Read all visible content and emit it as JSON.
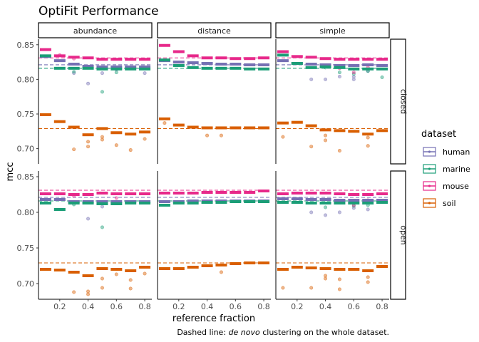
{
  "chart_data": {
    "type": "scatter",
    "title": "OptiFit Performance",
    "xlabel": "reference fraction",
    "ylabel": "mcc",
    "caption_prefix": "Dashed line: ",
    "caption_italic": "de novo",
    "caption_suffix": " clustering on the whole dataset.",
    "col_facets": [
      "abundance",
      "distance",
      "simple"
    ],
    "row_facets": [
      "closed",
      "open"
    ],
    "x": [
      0.1,
      0.2,
      0.3,
      0.4,
      0.5,
      0.6,
      0.7,
      0.8
    ],
    "xlim": [
      0.05,
      0.85
    ],
    "ylim": [
      0.678,
      0.858
    ],
    "x_ticks": [
      "0.2",
      "0.4",
      "0.6",
      "0.8"
    ],
    "y_ticks": [
      "0.70",
      "0.75",
      "0.80",
      "0.85"
    ],
    "grid": false,
    "legend": {
      "title": "dataset",
      "position": "right",
      "entries": [
        "human",
        "marine",
        "mouse",
        "soil"
      ]
    },
    "colors": {
      "human": "#7570b3",
      "marine": "#1b9e77",
      "mouse": "#e7298a",
      "soil": "#d95f02"
    },
    "de_novo": {
      "human": 0.821,
      "marine": 0.816,
      "mouse": 0.831,
      "soil": 0.729
    },
    "panels": {
      "closed": {
        "abundance": {
          "human": [
            0.833,
            0.827,
            0.822,
            0.819,
            0.818,
            0.818,
            0.818,
            0.818
          ],
          "marine": [
            0.834,
            0.816,
            0.816,
            0.816,
            0.815,
            0.815,
            0.815,
            0.815
          ],
          "mouse": [
            0.843,
            0.834,
            0.832,
            0.831,
            0.829,
            0.829,
            0.829,
            0.829
          ],
          "soil": [
            0.749,
            0.739,
            0.731,
            0.72,
            0.729,
            0.723,
            0.721,
            0.724
          ]
        },
        "distance": {
          "human": [
            0.827,
            0.825,
            0.824,
            0.823,
            0.822,
            0.822,
            0.821,
            0.821
          ],
          "marine": [
            0.828,
            0.82,
            0.817,
            0.816,
            0.816,
            0.816,
            0.815,
            0.815
          ],
          "mouse": [
            0.849,
            0.84,
            0.834,
            0.831,
            0.831,
            0.83,
            0.83,
            0.831
          ],
          "soil": [
            0.743,
            0.734,
            0.731,
            0.73,
            0.73,
            0.73,
            0.73,
            0.73
          ]
        },
        "simple": {
          "human": [
            0.827,
            0.823,
            0.822,
            0.821,
            0.82,
            0.82,
            0.821,
            0.82
          ],
          "marine": [
            0.835,
            0.823,
            0.817,
            0.818,
            0.817,
            0.815,
            0.815,
            0.815
          ],
          "mouse": [
            0.84,
            0.833,
            0.832,
            0.83,
            0.829,
            0.829,
            0.829,
            0.829
          ],
          "soil": [
            0.737,
            0.738,
            0.733,
            0.727,
            0.726,
            0.725,
            0.721,
            0.726
          ]
        }
      },
      "open": {
        "abundance": {
          "human": [
            0.818,
            0.818,
            0.815,
            0.815,
            0.815,
            0.815,
            0.815,
            0.815
          ],
          "marine": [
            0.813,
            0.804,
            0.813,
            0.813,
            0.812,
            0.812,
            0.813,
            0.813
          ],
          "mouse": [
            0.826,
            0.826,
            0.825,
            0.825,
            0.827,
            0.826,
            0.826,
            0.826
          ],
          "soil": [
            0.72,
            0.719,
            0.716,
            0.711,
            0.721,
            0.72,
            0.718,
            0.723
          ]
        },
        "distance": {
          "human": [
            0.815,
            0.815,
            0.816,
            0.816,
            0.816,
            0.816,
            0.816,
            0.816
          ],
          "marine": [
            0.81,
            0.813,
            0.813,
            0.814,
            0.814,
            0.815,
            0.815,
            0.815
          ],
          "mouse": [
            0.827,
            0.827,
            0.827,
            0.828,
            0.828,
            0.828,
            0.828,
            0.83
          ],
          "soil": [
            0.721,
            0.721,
            0.723,
            0.725,
            0.726,
            0.728,
            0.729,
            0.729
          ]
        },
        "simple": {
          "human": [
            0.819,
            0.819,
            0.818,
            0.818,
            0.817,
            0.817,
            0.817,
            0.817
          ],
          "marine": [
            0.814,
            0.814,
            0.813,
            0.813,
            0.813,
            0.813,
            0.813,
            0.814
          ],
          "mouse": [
            0.826,
            0.827,
            0.827,
            0.827,
            0.826,
            0.825,
            0.825,
            0.826
          ],
          "soil": [
            0.72,
            0.723,
            0.722,
            0.721,
            0.72,
            0.72,
            0.718,
            0.724
          ]
        }
      }
    },
    "outliers": {
      "closed": {
        "abundance": {
          "human": [
            [
              0.3,
              0.809
            ],
            [
              0.4,
              0.794
            ],
            [
              0.5,
              0.809
            ],
            [
              0.6,
              0.814
            ],
            [
              0.8,
              0.809
            ]
          ],
          "marine": [
            [
              0.3,
              0.811
            ],
            [
              0.5,
              0.782
            ],
            [
              0.6,
              0.81
            ]
          ],
          "mouse": [
            [
              0.2,
              0.835
            ],
            [
              0.3,
              0.83
            ]
          ],
          "soil": [
            [
              0.3,
              0.699
            ],
            [
              0.4,
              0.703
            ],
            [
              0.4,
              0.71
            ],
            [
              0.5,
              0.713
            ],
            [
              0.5,
              0.717
            ],
            [
              0.6,
              0.705
            ],
            [
              0.7,
              0.698
            ],
            [
              0.8,
              0.714
            ]
          ]
        },
        "distance": {
          "human": [],
          "marine": [],
          "mouse": [],
          "soil": [
            [
              0.1,
              0.737
            ],
            [
              0.4,
              0.719
            ],
            [
              0.5,
              0.719
            ]
          ]
        },
        "simple": {
          "human": [
            [
              0.3,
              0.8
            ],
            [
              0.4,
              0.8
            ],
            [
              0.5,
              0.804
            ],
            [
              0.6,
              0.8
            ],
            [
              0.6,
              0.804
            ],
            [
              0.7,
              0.812
            ]
          ],
          "marine": [
            [
              0.4,
              0.817
            ],
            [
              0.5,
              0.81
            ],
            [
              0.6,
              0.808
            ],
            [
              0.7,
              0.812
            ],
            [
              0.8,
              0.803
            ]
          ],
          "mouse": [
            [
              0.5,
              0.816
            ],
            [
              0.6,
              0.81
            ],
            [
              0.7,
              0.817
            ]
          ],
          "soil": [
            [
              0.1,
              0.717
            ],
            [
              0.3,
              0.703
            ],
            [
              0.4,
              0.712
            ],
            [
              0.4,
              0.719
            ],
            [
              0.5,
              0.697
            ],
            [
              0.7,
              0.704
            ],
            [
              0.7,
              0.716
            ]
          ]
        }
      },
      "open": {
        "abundance": {
          "human": [
            [
              0.4,
              0.791
            ],
            [
              0.5,
              0.808
            ]
          ],
          "marine": [
            [
              0.5,
              0.779
            ],
            [
              0.3,
              0.811
            ]
          ],
          "mouse": [
            [
              0.3,
              0.823
            ],
            [
              0.6,
              0.82
            ]
          ],
          "soil": [
            [
              0.3,
              0.688
            ],
            [
              0.4,
              0.685
            ],
            [
              0.4,
              0.689
            ],
            [
              0.5,
              0.694
            ],
            [
              0.5,
              0.707
            ],
            [
              0.6,
              0.713
            ],
            [
              0.7,
              0.693
            ],
            [
              0.7,
              0.705
            ],
            [
              0.8,
              0.714
            ]
          ]
        },
        "distance": {
          "human": [],
          "marine": [],
          "mouse": [],
          "soil": [
            [
              0.5,
              0.716
            ]
          ]
        },
        "simple": {
          "human": [
            [
              0.3,
              0.8
            ],
            [
              0.4,
              0.796
            ],
            [
              0.5,
              0.8
            ],
            [
              0.6,
              0.806
            ],
            [
              0.7,
              0.804
            ]
          ],
          "marine": [
            [
              0.4,
              0.807
            ],
            [
              0.6,
              0.809
            ],
            [
              0.7,
              0.81
            ]
          ],
          "mouse": [
            [
              0.6,
              0.81
            ],
            [
              0.7,
              0.817
            ]
          ],
          "soil": [
            [
              0.1,
              0.694
            ],
            [
              0.3,
              0.694
            ],
            [
              0.4,
              0.707
            ],
            [
              0.4,
              0.711
            ],
            [
              0.5,
              0.692
            ],
            [
              0.5,
              0.706
            ],
            [
              0.7,
              0.702
            ],
            [
              0.7,
              0.709
            ]
          ]
        }
      }
    }
  }
}
